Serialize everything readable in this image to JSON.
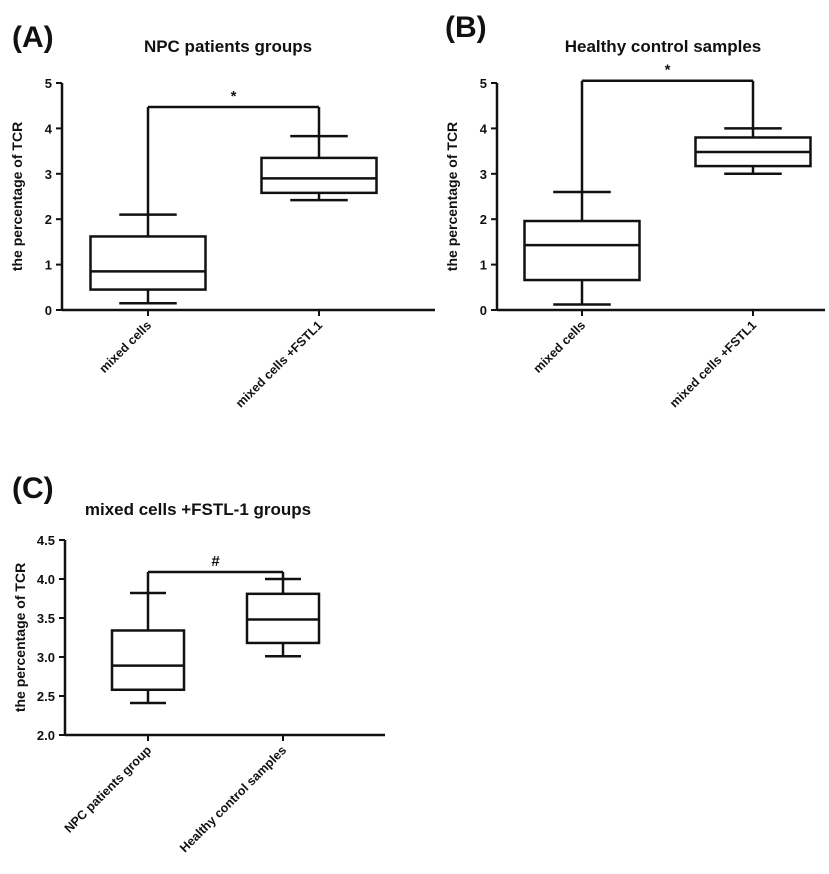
{
  "colors": {
    "ink": "#111111",
    "background": "#ffffff"
  },
  "chart_data": [
    {
      "panel_label": "(A)",
      "type": "boxplot",
      "title": "NPC patients groups",
      "ylabel": "the percentage of TCR",
      "xlabel": "",
      "ylim": [
        0,
        5
      ],
      "yticks": [
        "0",
        "1",
        "2",
        "3",
        "4",
        "5"
      ],
      "grid": false,
      "categories": [
        "mixed cells",
        "mixed cells +FSTL1"
      ],
      "boxes": [
        {
          "min": 0.15,
          "q1": 0.45,
          "median": 0.85,
          "q3": 1.62,
          "max": 2.1
        },
        {
          "min": 2.42,
          "q1": 2.58,
          "median": 2.9,
          "q3": 3.35,
          "max": 3.83
        }
      ],
      "significance": {
        "symbol": "*",
        "level": 4.47
      }
    },
    {
      "panel_label": "(B)",
      "type": "boxplot",
      "title": "Healthy control samples",
      "ylabel": "the percentage of TCR",
      "xlabel": "",
      "ylim": [
        0,
        5
      ],
      "yticks": [
        "0",
        "1",
        "2",
        "3",
        "4",
        "5"
      ],
      "grid": false,
      "categories": [
        "mixed cells",
        "mixed cells +FSTL1"
      ],
      "boxes": [
        {
          "min": 0.12,
          "q1": 0.66,
          "median": 1.43,
          "q3": 1.96,
          "max": 2.6
        },
        {
          "min": 3.0,
          "q1": 3.17,
          "median": 3.48,
          "q3": 3.8,
          "max": 4.0
        }
      ],
      "significance": {
        "symbol": "*",
        "level": 5.05
      }
    },
    {
      "panel_label": "(C)",
      "type": "boxplot",
      "title": "mixed cells +FSTL-1 groups",
      "ylabel": "the percentage of TCR",
      "xlabel": "",
      "ylim": [
        2.0,
        4.5
      ],
      "yticks": [
        "2.0",
        "2.5",
        "3.0",
        "3.5",
        "4.0",
        "4.5"
      ],
      "grid": false,
      "categories": [
        "NPC patients group",
        "Healthy control samples"
      ],
      "boxes": [
        {
          "min": 2.41,
          "q1": 2.58,
          "median": 2.89,
          "q3": 3.34,
          "max": 3.82
        },
        {
          "min": 3.01,
          "q1": 3.18,
          "median": 3.48,
          "q3": 3.81,
          "max": 4.0
        }
      ],
      "significance": {
        "symbol": "#",
        "level": 4.09
      }
    }
  ]
}
